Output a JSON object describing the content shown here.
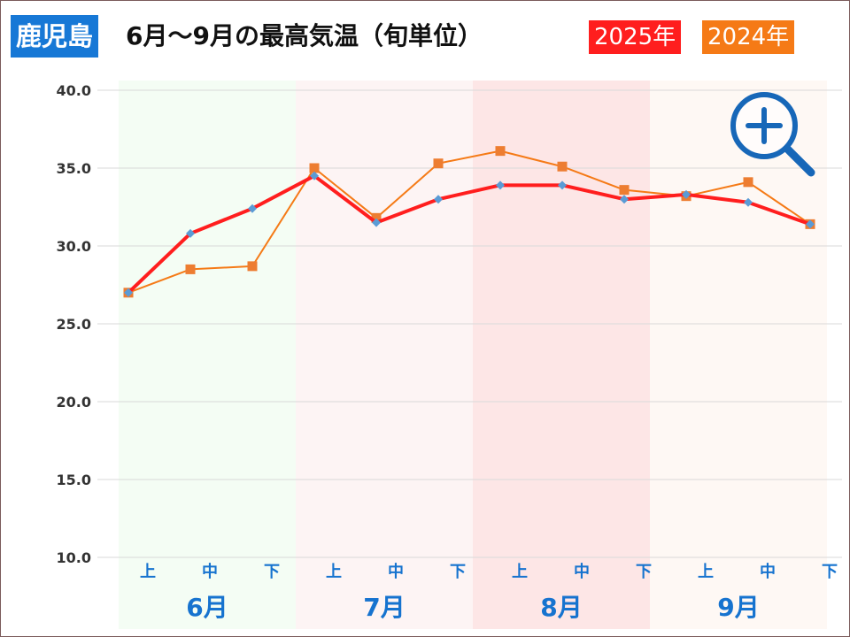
{
  "header": {
    "region": "鹿児島",
    "title": "6月～9月の最高気温（旬単位）"
  },
  "legend": [
    {
      "label": "2025年",
      "color": "#ff1e1e"
    },
    {
      "label": "2024年",
      "color": "#f57a16"
    }
  ],
  "zoom_icon": "zoom-in-magnifier-icon",
  "chart_data": {
    "type": "line",
    "title": "6月～9月の最高気温（旬単位）",
    "months": [
      "6月",
      "7月",
      "8月",
      "9月"
    ],
    "month_band_colors": [
      "#f4fdf4",
      "#fdf4f4",
      "#fde6e6",
      "#fef8f4"
    ],
    "categories": [
      "上",
      "中",
      "下",
      "上",
      "中",
      "下",
      "上",
      "中",
      "下",
      "上",
      "中",
      "下"
    ],
    "y_ticks": [
      "40.0",
      "35.0",
      "30.0",
      "25.0",
      "20.0",
      "15.0",
      "10.0"
    ],
    "ylim": [
      10,
      40
    ],
    "grid": true,
    "series": [
      {
        "name": "2025年",
        "color": "#ff1e1e",
        "marker": "diamond",
        "marker_color": "#5b9bd5",
        "values": [
          27.0,
          30.8,
          32.4,
          34.5,
          31.5,
          33.0,
          33.9,
          33.9,
          33.0,
          33.3,
          32.8,
          31.4
        ]
      },
      {
        "name": "2024年",
        "color": "#f57a16",
        "marker": "square",
        "marker_color": "#ed7d31",
        "values": [
          27.0,
          28.5,
          28.7,
          35.0,
          31.8,
          35.3,
          36.1,
          35.1,
          33.6,
          33.2,
          34.1,
          31.4
        ]
      }
    ]
  }
}
